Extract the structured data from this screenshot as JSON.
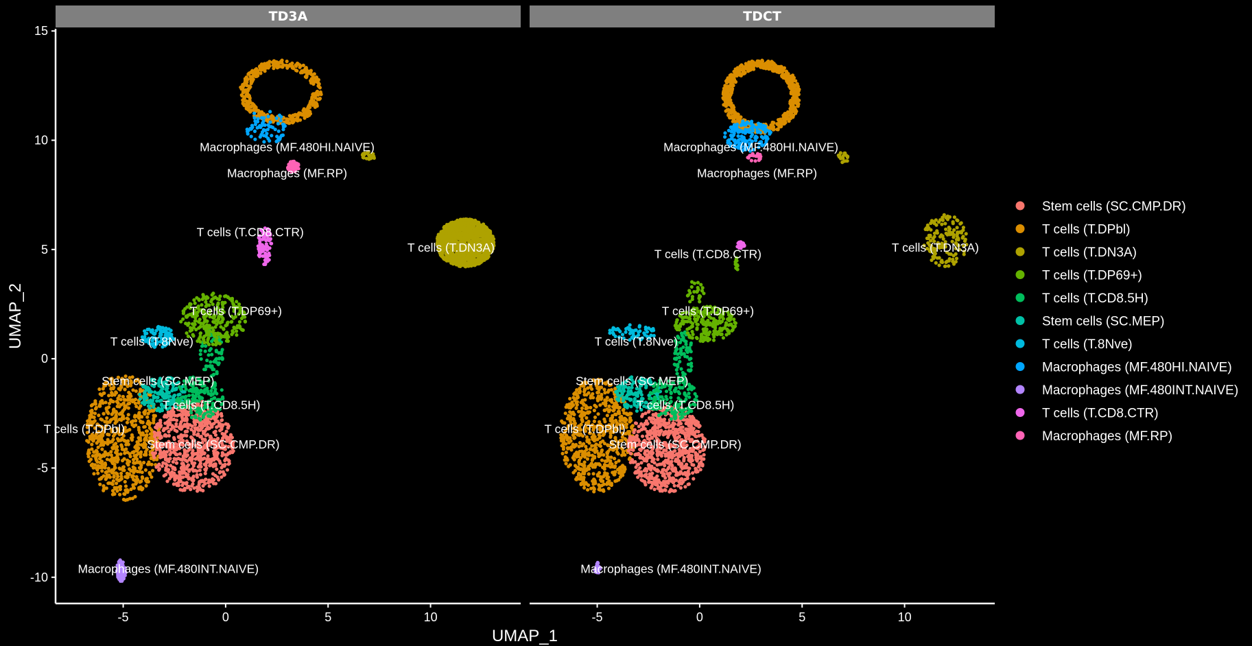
{
  "chart_data": {
    "type": "scatter",
    "xlabel": "UMAP_1",
    "ylabel": "UMAP_2",
    "xlim": [
      -8.3,
      14.4
    ],
    "ylim": [
      -11.2,
      15.1
    ],
    "x_ticks": [
      -5,
      0,
      5,
      10
    ],
    "y_ticks": [
      -10,
      -5,
      0,
      5,
      10,
      15
    ],
    "tick_labels_x": [
      "-5",
      "0",
      "5",
      "10"
    ],
    "tick_labels_y": [
      "-10",
      "-5",
      "0",
      "5",
      "10",
      "15"
    ],
    "grid": false,
    "legend_position": "right",
    "series": [
      {
        "name": "Stem cells (SC.CMP.DR)",
        "color": "#F8766D"
      },
      {
        "name": "T cells (T.DPbl)",
        "color": "#DB8E00"
      },
      {
        "name": "T cells (T.DN3A)",
        "color": "#AEA200"
      },
      {
        "name": "T cells (T.DP69+)",
        "color": "#64B200"
      },
      {
        "name": "T cells (T.CD8.5H)",
        "color": "#00BD5C"
      },
      {
        "name": "Stem cells (SC.MEP)",
        "color": "#00C1A7"
      },
      {
        "name": "T cells (T.8Nve)",
        "color": "#00BADE"
      },
      {
        "name": "Macrophages (MF.480HI.NAIVE)",
        "color": "#00A6FF"
      },
      {
        "name": "Macrophages (MF.480INT.NAIVE)",
        "color": "#B385FF"
      },
      {
        "name": "T cells (T.CD8.CTR)",
        "color": "#EF67EB"
      },
      {
        "name": "Macrophages (MF.RP)",
        "color": "#FF63B6"
      }
    ],
    "panels": [
      {
        "title": "TD3A",
        "clusters": [
          {
            "series": 1,
            "shape": "ellipse",
            "cx": -5.0,
            "cy": -3.6,
            "rx": 1.8,
            "ry": 2.9,
            "n": 700
          },
          {
            "series": 0,
            "shape": "ellipse",
            "cx": -1.6,
            "cy": -4.0,
            "rx": 2.0,
            "ry": 2.1,
            "n": 750
          },
          {
            "series": 5,
            "shape": "ellipse",
            "cx": -3.1,
            "cy": -1.6,
            "rx": 1.2,
            "ry": 0.8,
            "n": 150
          },
          {
            "series": 4,
            "shape": "ellipse",
            "cx": -1.3,
            "cy": -1.8,
            "rx": 1.2,
            "ry": 1.0,
            "n": 160
          },
          {
            "series": 4,
            "shape": "ellipse",
            "cx": -0.7,
            "cy": 0.3,
            "rx": 0.6,
            "ry": 1.1,
            "n": 70
          },
          {
            "series": 3,
            "shape": "ellipse",
            "cx": -0.6,
            "cy": 1.8,
            "rx": 1.6,
            "ry": 1.2,
            "n": 260
          },
          {
            "series": 6,
            "shape": "ellipse",
            "cx": -3.3,
            "cy": 1.0,
            "rx": 0.8,
            "ry": 0.5,
            "n": 90
          },
          {
            "series": 2,
            "shape": "ellipse",
            "cx": 11.7,
            "cy": 5.3,
            "rx": 1.4,
            "ry": 1.1,
            "n": 1200
          },
          {
            "series": 9,
            "shape": "ellipse",
            "cx": 1.9,
            "cy": 5.2,
            "rx": 0.35,
            "ry": 0.9,
            "n": 80
          },
          {
            "series": 1,
            "shape": "ring",
            "cx": 2.7,
            "cy": 12.2,
            "rx": 1.9,
            "ry": 1.4,
            "n": 420
          },
          {
            "series": 7,
            "shape": "ellipse",
            "cx": 2.0,
            "cy": 10.6,
            "rx": 1.0,
            "ry": 0.8,
            "n": 70
          },
          {
            "series": 10,
            "shape": "ellipse",
            "cx": 3.3,
            "cy": 8.8,
            "rx": 0.28,
            "ry": 0.25,
            "n": 60
          },
          {
            "series": 2,
            "shape": "ellipse",
            "cx": 7.0,
            "cy": 9.3,
            "rx": 0.35,
            "ry": 0.18,
            "n": 25
          },
          {
            "series": 8,
            "shape": "ellipse",
            "cx": -5.1,
            "cy": -9.7,
            "rx": 0.22,
            "ry": 0.5,
            "n": 90
          }
        ],
        "labels": [
          {
            "text": "Macrophages (MF.480HI.NAIVE)",
            "x": 3.0,
            "y": 9.5
          },
          {
            "text": "Macrophages (MF.RP)",
            "x": 3.0,
            "y": 8.3
          },
          {
            "text": "T cells (T.CD8.CTR)",
            "x": 1.2,
            "y": 5.6
          },
          {
            "text": "T cells (T.DN3A)",
            "x": 11.0,
            "y": 4.9
          },
          {
            "text": "T cells (T.DP69+)",
            "x": 0.5,
            "y": 2.0
          },
          {
            "text": "T cells (T.8Nve)",
            "x": -3.6,
            "y": 0.6
          },
          {
            "text": "Stem cells (SC.MEP)",
            "x": -3.3,
            "y": -1.2
          },
          {
            "text": "T cells (T.CD8.5H)",
            "x": -0.7,
            "y": -2.3
          },
          {
            "text": "T cells (T.DPbl)",
            "x": -6.9,
            "y": -3.4
          },
          {
            "text": "Stem cells (SC.CMP.DR)",
            "x": -0.6,
            "y": -4.1
          },
          {
            "text": "Macrophages (MF.480INT.NAIVE)",
            "x": -2.8,
            "y": -9.8
          }
        ]
      },
      {
        "title": "TDCT",
        "clusters": [
          {
            "series": 1,
            "shape": "ellipse",
            "cx": -5.0,
            "cy": -3.5,
            "rx": 1.8,
            "ry": 2.6,
            "n": 650
          },
          {
            "series": 0,
            "shape": "ellipse",
            "cx": -1.6,
            "cy": -4.1,
            "rx": 1.9,
            "ry": 2.0,
            "n": 720
          },
          {
            "series": 5,
            "shape": "ellipse",
            "cx": -3.0,
            "cy": -1.6,
            "rx": 1.1,
            "ry": 0.8,
            "n": 140
          },
          {
            "series": 4,
            "shape": "ellipse",
            "cx": -1.3,
            "cy": -1.8,
            "rx": 1.2,
            "ry": 1.0,
            "n": 150
          },
          {
            "series": 4,
            "shape": "ellipse",
            "cx": -0.8,
            "cy": 0.2,
            "rx": 0.5,
            "ry": 1.1,
            "n": 70
          },
          {
            "series": 3,
            "shape": "ellipse",
            "cx": 0.3,
            "cy": 1.6,
            "rx": 1.5,
            "ry": 0.8,
            "n": 230
          },
          {
            "series": 3,
            "shape": "ellipse",
            "cx": -0.2,
            "cy": 3.0,
            "rx": 0.4,
            "ry": 0.6,
            "n": 25
          },
          {
            "series": 6,
            "shape": "ellipse",
            "cx": -3.3,
            "cy": 1.2,
            "rx": 1.2,
            "ry": 0.35,
            "n": 60
          },
          {
            "series": 2,
            "shape": "ellipse",
            "cx": 12.0,
            "cy": 5.4,
            "rx": 1.1,
            "ry": 1.2,
            "n": 150
          },
          {
            "series": 9,
            "shape": "ellipse",
            "cx": 2.0,
            "cy": 5.2,
            "rx": 0.2,
            "ry": 0.15,
            "n": 30
          },
          {
            "series": 3,
            "shape": "ellipse",
            "cx": 1.8,
            "cy": 4.1,
            "rx": 0.1,
            "ry": 0.6,
            "n": 12
          },
          {
            "series": 1,
            "shape": "ring",
            "cx": 3.0,
            "cy": 12.0,
            "rx": 1.8,
            "ry": 1.6,
            "n": 650
          },
          {
            "series": 7,
            "shape": "ellipse",
            "cx": 2.3,
            "cy": 10.2,
            "rx": 1.2,
            "ry": 0.7,
            "n": 160
          },
          {
            "series": 10,
            "shape": "ellipse",
            "cx": 2.7,
            "cy": 9.2,
            "rx": 0.4,
            "ry": 0.2,
            "n": 18
          },
          {
            "series": 2,
            "shape": "ellipse",
            "cx": 7.0,
            "cy": 9.2,
            "rx": 0.3,
            "ry": 0.25,
            "n": 18
          },
          {
            "series": 8,
            "shape": "ellipse",
            "cx": -5.0,
            "cy": -9.6,
            "rx": 0.15,
            "ry": 0.3,
            "n": 25
          }
        ],
        "labels": [
          {
            "text": "Macrophages (MF.480HI.NAIVE)",
            "x": 2.5,
            "y": 9.5
          },
          {
            "text": "Macrophages (MF.RP)",
            "x": 2.8,
            "y": 8.3
          },
          {
            "text": "T cells (T.CD8.CTR)",
            "x": 0.4,
            "y": 4.6
          },
          {
            "text": "T cells (T.DN3A)",
            "x": 11.5,
            "y": 4.9
          },
          {
            "text": "T cells (T.DP69+)",
            "x": 0.4,
            "y": 2.0
          },
          {
            "text": "T cells (T.8Nve)",
            "x": -3.1,
            "y": 0.6
          },
          {
            "text": "Stem cells (SC.MEP)",
            "x": -3.3,
            "y": -1.2
          },
          {
            "text": "T cells (T.CD8.5H)",
            "x": -0.7,
            "y": -2.3
          },
          {
            "text": "T cells (T.DPbl)",
            "x": -5.6,
            "y": -3.4
          },
          {
            "text": "Stem cells (SC.CMP.DR)",
            "x": -1.2,
            "y": -4.1
          },
          {
            "text": "Macrophages (MF.480INT.NAIVE)",
            "x": -1.4,
            "y": -9.8
          }
        ]
      }
    ]
  }
}
